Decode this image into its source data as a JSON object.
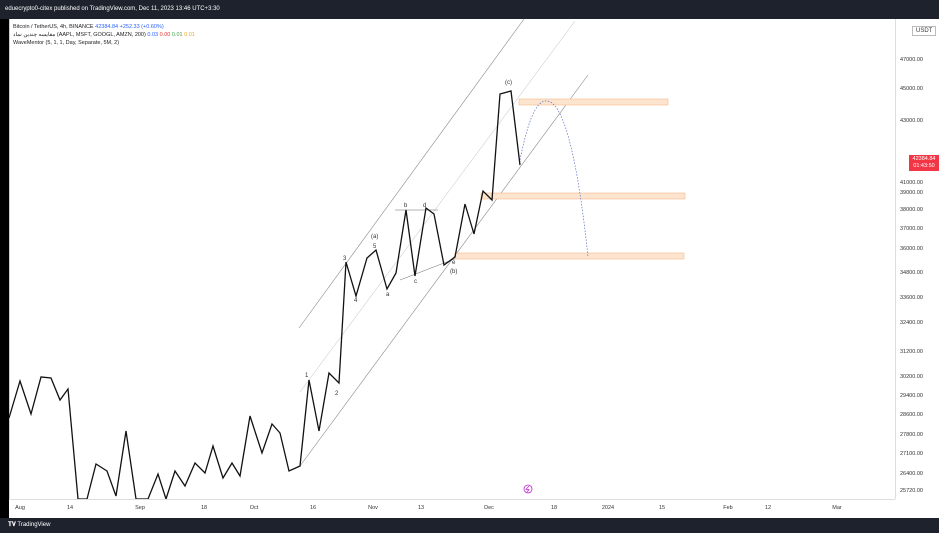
{
  "header": {
    "publisher": "eduecrypto0-citex published on TradingView.com, Dec 11, 2023 13:46 UTC+3:30"
  },
  "legend": {
    "symbol": "Bitcoin / TetherUS, 4h, BINANCE",
    "price": "42384.84",
    "change": "+252.33 (+0.60%)",
    "indicator1": "مقایسه چندین نماد (AAPL, MSFT, GOOGL, AMZN, 200)",
    "ind1_v1": "0.03",
    "ind1_v2": "0.00",
    "ind1_v3": "0.01",
    "ind1_v4": "0.01",
    "indicator2": "WaveMentor (5, 1, 1, Day, Separate, 5M, 2)"
  },
  "price_axis": {
    "currency": "USDT",
    "labels": [
      "47000.00",
      "45000.00",
      "43000.00",
      "41000.00",
      "39000.00",
      "38000.00",
      "37000.00",
      "36000.00",
      "34800.00",
      "33600.00",
      "32400.00",
      "31200.00",
      "30200.00",
      "29400.00",
      "28600.00",
      "27800.00",
      "27100.00",
      "26400.00",
      "25720.00"
    ],
    "last_price": "42384.84",
    "countdown": "01:43:50"
  },
  "time_axis": {
    "labels": [
      "Aug",
      "14",
      "Sep",
      "18",
      "Oct",
      "16",
      "Nov",
      "13",
      "Dec",
      "18",
      "2024",
      "15",
      "Feb",
      "12",
      "Mar"
    ]
  },
  "wave_labels": {
    "w1": "1",
    "w2": "2",
    "w3": "3",
    "w4": "4",
    "w5": "5",
    "wa": "(a)",
    "wb": "(b)",
    "wc": "(c)",
    "sa": "a",
    "sb": "b",
    "sc": "c",
    "sd": "d",
    "se": "e"
  },
  "footer": {
    "brand": "TradingView"
  },
  "colors": {
    "zone": "#fce4cf",
    "zone_border": "#f5b98a",
    "projection": "#5c6bc0",
    "last_price_bg": "#f23645"
  }
}
